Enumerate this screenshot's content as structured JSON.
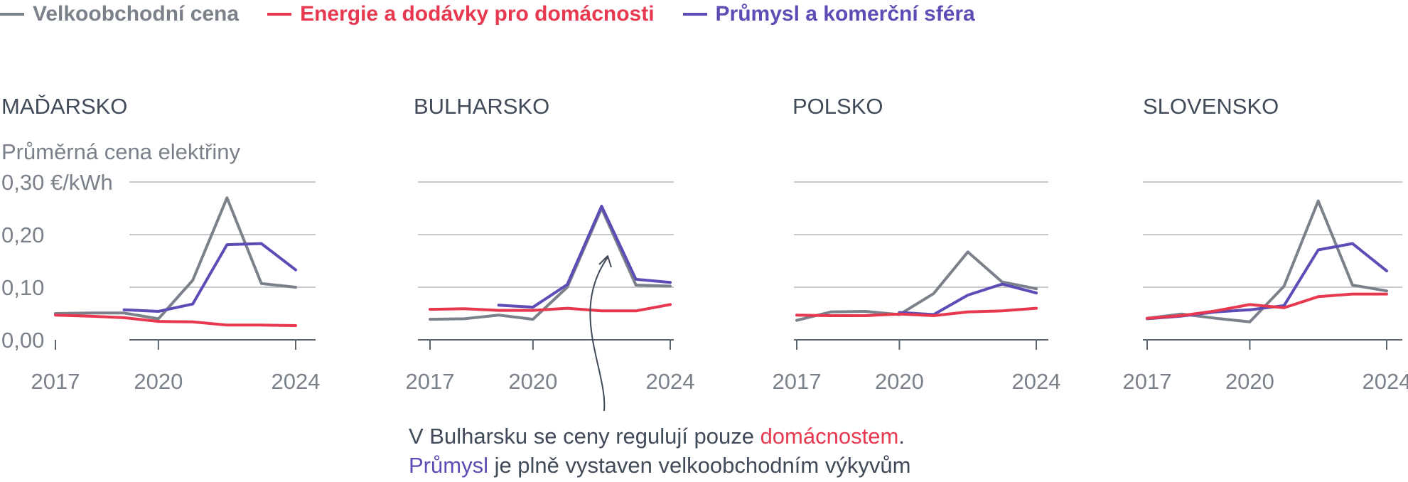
{
  "legend": [
    {
      "label": "Velkoobchodní cena",
      "color": "#7a818a"
    },
    {
      "label": "Energie a dodávky pro domácnosti",
      "color": "#e8384f"
    },
    {
      "label": "Průmysl a komerční sféra",
      "color": "#5b4db5"
    }
  ],
  "y_axis": {
    "title": "Průměrná cena elektřiny",
    "ticks": [
      "0,30 €/kWh",
      "0,20",
      "0,10",
      "0,00"
    ]
  },
  "note": {
    "line1_prefix": "V Bulharsku se ceny regulují pouze ",
    "line1_highlight": "domácnostem",
    "line1_suffix": ".",
    "line2_highlight": "Průmysl",
    "line2_suffix": " je plně vystaven velkoobchodním výkyvům"
  },
  "chart_data": [
    {
      "type": "line",
      "title": "MAĎARSKO",
      "ylabel": "Průměrná cena elektřiny",
      "ylim": [
        0,
        0.3
      ],
      "x_ticks": [
        "2017",
        "2020",
        "2024"
      ],
      "x": [
        2017,
        2018,
        2019,
        2020,
        2021,
        2022,
        2023,
        2024
      ],
      "series": [
        {
          "name": "Velkoobchodní cena",
          "values": [
            0.05,
            0.051,
            0.051,
            0.04,
            0.113,
            0.27,
            0.107,
            0.1
          ]
        },
        {
          "name": "Energie a dodávky pro domácnosti",
          "values": [
            0.047,
            0.045,
            0.042,
            0.035,
            0.034,
            0.028,
            0.028,
            0.027
          ]
        },
        {
          "name": "Průmysl a komerční sféra",
          "values": [
            null,
            null,
            0.057,
            0.054,
            0.068,
            0.181,
            0.183,
            0.133
          ]
        }
      ]
    },
    {
      "type": "line",
      "title": "BULHARSKO",
      "ylim": [
        0,
        0.3
      ],
      "x_ticks": [
        "2017",
        "2020",
        "2024"
      ],
      "x": [
        2017,
        2018,
        2019,
        2020,
        2021,
        2022,
        2023,
        2024
      ],
      "series": [
        {
          "name": "Velkoobchodní cena",
          "values": [
            0.039,
            0.04,
            0.047,
            0.039,
            0.1,
            0.25,
            0.104,
            0.102
          ]
        },
        {
          "name": "Energie a dodávky pro domácnosti",
          "values": [
            0.058,
            0.059,
            0.056,
            0.056,
            0.06,
            0.055,
            0.055,
            0.067
          ]
        },
        {
          "name": "Průmysl a komerční sféra",
          "values": [
            null,
            null,
            0.066,
            0.062,
            0.105,
            0.254,
            0.115,
            0.109
          ]
        }
      ]
    },
    {
      "type": "line",
      "title": "POLSKO",
      "ylim": [
        0,
        0.3
      ],
      "x_ticks": [
        "2017",
        "2020",
        "2024"
      ],
      "x": [
        2017,
        2018,
        2019,
        2020,
        2021,
        2022,
        2023,
        2024
      ],
      "series": [
        {
          "name": "Velkoobchodní cena",
          "values": [
            0.037,
            0.053,
            0.054,
            0.048,
            0.088,
            0.167,
            0.11,
            0.097
          ]
        },
        {
          "name": "Energie a dodávky pro domácnosti",
          "values": [
            0.047,
            0.046,
            0.046,
            0.049,
            0.046,
            0.053,
            0.055,
            0.06
          ]
        },
        {
          "name": "Průmysl a komerční sféra",
          "values": [
            null,
            null,
            null,
            0.052,
            0.048,
            0.085,
            0.106,
            0.089
          ]
        }
      ]
    },
    {
      "type": "line",
      "title": "SLOVENSKO",
      "ylim": [
        0,
        0.3
      ],
      "x_ticks": [
        "2017",
        "2020",
        "2024"
      ],
      "x": [
        2017,
        2018,
        2019,
        2020,
        2021,
        2022,
        2023,
        2024
      ],
      "series": [
        {
          "name": "Velkoobchodní cena",
          "values": [
            0.041,
            0.049,
            0.041,
            0.034,
            0.102,
            0.264,
            0.104,
            0.093
          ]
        },
        {
          "name": "Energie a dodávky pro domácnosti",
          "values": [
            0.041,
            0.046,
            0.055,
            0.067,
            0.061,
            0.082,
            0.087,
            0.087
          ]
        },
        {
          "name": "Průmysl a komerční sféra",
          "values": [
            0.04,
            0.045,
            0.053,
            0.057,
            0.065,
            0.171,
            0.183,
            0.131
          ]
        }
      ]
    }
  ]
}
